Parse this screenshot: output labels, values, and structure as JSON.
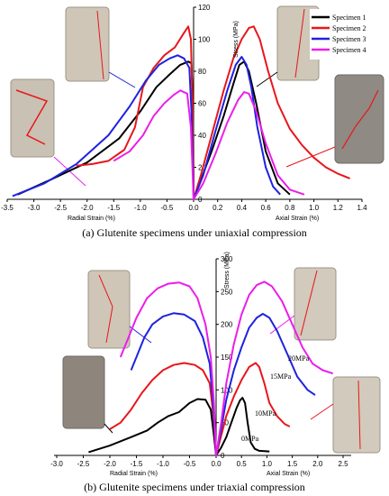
{
  "chart_data": [
    {
      "type": "line",
      "caption": "(a) Glutenite specimens under uniaxial compression",
      "xlabel_left": "Radial  Strain (%)",
      "xlabel_right": "Axial Strain (%)",
      "ylabel": "Stress (MPa)",
      "xlim": [
        -3.5,
        1.4
      ],
      "ylim": [
        0,
        120
      ],
      "x_ticks": [
        -3.5,
        -3.0,
        -2.5,
        -2.0,
        -1.5,
        -1.0,
        -0.5,
        0.0,
        0.2,
        0.4,
        0.6,
        0.8,
        1.0,
        1.2,
        1.4
      ],
      "x_tick_labels": [
        "-3.5",
        "-3.0",
        "-2.5",
        "-2.0",
        "-1.5",
        "-1.0",
        "-0.5",
        "0.0",
        "0.2",
        "0.4",
        "0.6",
        "0.8",
        "1.0",
        "1.2",
        "1.4"
      ],
      "y_ticks": [
        0,
        20,
        40,
        60,
        80,
        100,
        120
      ],
      "legend": [
        "Specimen 1",
        "Specimen 2",
        "Specimen 3",
        "Specimen 4"
      ],
      "legend_position": "top-right",
      "series": [
        {
          "name": "Specimen 1",
          "color": "#000000",
          "points": [
            [
              -3.3,
              3
            ],
            [
              -2.7,
              12
            ],
            [
              -2.0,
              23
            ],
            [
              -1.4,
              38
            ],
            [
              -1.0,
              55
            ],
            [
              -0.7,
              70
            ],
            [
              -0.45,
              78
            ],
            [
              -0.25,
              84
            ],
            [
              -0.1,
              86
            ],
            [
              -0.04,
              85
            ],
            [
              -0.01,
              55
            ],
            [
              0.0,
              0
            ],
            [
              0.05,
              10
            ],
            [
              0.15,
              30
            ],
            [
              0.25,
              52
            ],
            [
              0.33,
              72
            ],
            [
              0.38,
              84
            ],
            [
              0.42,
              86
            ],
            [
              0.46,
              80
            ],
            [
              0.52,
              60
            ],
            [
              0.6,
              30
            ],
            [
              0.7,
              10
            ],
            [
              0.8,
              3
            ]
          ]
        },
        {
          "name": "Specimen 2",
          "color": "#e8161b",
          "points": [
            [
              -2.2,
              21
            ],
            [
              -1.9,
              22
            ],
            [
              -1.6,
              24
            ],
            [
              -1.3,
              31
            ],
            [
              -1.1,
              45
            ],
            [
              -0.95,
              70
            ],
            [
              -0.75,
              82
            ],
            [
              -0.55,
              90
            ],
            [
              -0.35,
              95
            ],
            [
              -0.2,
              103
            ],
            [
              -0.1,
              108
            ],
            [
              -0.05,
              100
            ],
            [
              -0.02,
              60
            ],
            [
              0.0,
              0
            ],
            [
              0.06,
              15
            ],
            [
              0.15,
              40
            ],
            [
              0.25,
              68
            ],
            [
              0.33,
              88
            ],
            [
              0.4,
              100
            ],
            [
              0.46,
              107
            ],
            [
              0.5,
              108
            ],
            [
              0.55,
              100
            ],
            [
              0.62,
              80
            ],
            [
              0.7,
              60
            ],
            [
              0.8,
              44
            ],
            [
              0.9,
              34
            ],
            [
              1.0,
              26
            ],
            [
              1.1,
              20
            ],
            [
              1.2,
              16
            ],
            [
              1.3,
              13
            ]
          ]
        },
        {
          "name": "Specimen 3",
          "color": "#1e22e0",
          "points": [
            [
              -3.4,
              2
            ],
            [
              -2.8,
              10
            ],
            [
              -2.2,
              22
            ],
            [
              -1.6,
              40
            ],
            [
              -1.2,
              58
            ],
            [
              -0.9,
              74
            ],
            [
              -0.65,
              84
            ],
            [
              -0.45,
              88
            ],
            [
              -0.3,
              90
            ],
            [
              -0.18,
              88
            ],
            [
              -0.08,
              82
            ],
            [
              -0.04,
              55
            ],
            [
              0.0,
              0
            ],
            [
              0.08,
              15
            ],
            [
              0.18,
              42
            ],
            [
              0.28,
              68
            ],
            [
              0.35,
              84
            ],
            [
              0.4,
              89
            ],
            [
              0.44,
              84
            ],
            [
              0.48,
              70
            ],
            [
              0.53,
              45
            ],
            [
              0.6,
              20
            ],
            [
              0.66,
              8
            ],
            [
              0.72,
              3
            ]
          ]
        },
        {
          "name": "Specimen 4",
          "color": "#ea1ee8",
          "points": [
            [
              -1.5,
              24
            ],
            [
              -1.2,
              30
            ],
            [
              -0.95,
              40
            ],
            [
              -0.75,
              52
            ],
            [
              -0.55,
              60
            ],
            [
              -0.38,
              65
            ],
            [
              -0.25,
              68
            ],
            [
              -0.12,
              66
            ],
            [
              -0.05,
              45
            ],
            [
              0.0,
              0
            ],
            [
              0.08,
              10
            ],
            [
              0.18,
              28
            ],
            [
              0.28,
              48
            ],
            [
              0.37,
              62
            ],
            [
              0.42,
              67
            ],
            [
              0.46,
              66
            ],
            [
              0.52,
              55
            ],
            [
              0.6,
              35
            ],
            [
              0.7,
              15
            ],
            [
              0.8,
              6
            ],
            [
              0.92,
              3
            ]
          ]
        }
      ]
    },
    {
      "type": "line",
      "caption": "(b) Glutenite specimens under triaxial compression",
      "xlabel_left": "Radial  Strain (%)",
      "xlabel_right": "Axial Strain (%)",
      "ylabel": "Stress (MPa)",
      "xlim": [
        -3.0,
        2.5
      ],
      "ylim": [
        0,
        300
      ],
      "x_ticks": [
        -3.0,
        -2.5,
        -2.0,
        -1.5,
        -1.0,
        -0.5,
        0.0,
        0.5,
        1.0,
        1.5,
        2.0,
        2.5
      ],
      "x_tick_labels": [
        "-3.0",
        "-2.5",
        "-2.0",
        "-1.5",
        "-1.0",
        "-0.5",
        "0.0",
        "0.5",
        "1.0",
        "1.5",
        "2.0",
        "2.5"
      ],
      "y_ticks": [
        0,
        50,
        100,
        150,
        200,
        250,
        300
      ],
      "series": [
        {
          "name": "0MPa",
          "color": "#000000",
          "points": [
            [
              -2.4,
              5
            ],
            [
              -2.0,
              15
            ],
            [
              -1.6,
              28
            ],
            [
              -1.3,
              38
            ],
            [
              -1.1,
              50
            ],
            [
              -0.9,
              60
            ],
            [
              -0.7,
              66
            ],
            [
              -0.5,
              80
            ],
            [
              -0.35,
              86
            ],
            [
              -0.2,
              85
            ],
            [
              -0.1,
              70
            ],
            [
              -0.04,
              30
            ],
            [
              0.0,
              0
            ],
            [
              0.1,
              12
            ],
            [
              0.2,
              28
            ],
            [
              0.3,
              50
            ],
            [
              0.4,
              72
            ],
            [
              0.47,
              84
            ],
            [
              0.52,
              88
            ],
            [
              0.57,
              80
            ],
            [
              0.62,
              50
            ],
            [
              0.68,
              20
            ],
            [
              0.76,
              10
            ],
            [
              0.85,
              7
            ],
            [
              1.05,
              6
            ]
          ]
        },
        {
          "name": "10MPa",
          "color": "#e8161b",
          "points": [
            [
              -2.0,
              40
            ],
            [
              -1.8,
              50
            ],
            [
              -1.6,
              70
            ],
            [
              -1.4,
              95
            ],
            [
              -1.2,
              115
            ],
            [
              -1.0,
              130
            ],
            [
              -0.8,
              138
            ],
            [
              -0.6,
              141
            ],
            [
              -0.4,
              138
            ],
            [
              -0.25,
              130
            ],
            [
              -0.12,
              110
            ],
            [
              -0.05,
              60
            ],
            [
              0.0,
              0
            ],
            [
              0.1,
              30
            ],
            [
              0.2,
              60
            ],
            [
              0.35,
              90
            ],
            [
              0.5,
              115
            ],
            [
              0.65,
              135
            ],
            [
              0.78,
              141
            ],
            [
              0.85,
              135
            ],
            [
              0.95,
              110
            ],
            [
              1.05,
              80
            ],
            [
              1.2,
              60
            ],
            [
              1.35,
              48
            ],
            [
              1.45,
              44
            ]
          ]
        },
        {
          "name": "15MPa",
          "color": "#1e22e0",
          "points": [
            [
              -1.6,
              130
            ],
            [
              -1.5,
              150
            ],
            [
              -1.35,
              180
            ],
            [
              -1.2,
              200
            ],
            [
              -1.0,
              212
            ],
            [
              -0.8,
              217
            ],
            [
              -0.6,
              215
            ],
            [
              -0.4,
              205
            ],
            [
              -0.25,
              180
            ],
            [
              -0.12,
              140
            ],
            [
              -0.05,
              70
            ],
            [
              0.0,
              0
            ],
            [
              0.1,
              40
            ],
            [
              0.2,
              85
            ],
            [
              0.35,
              130
            ],
            [
              0.5,
              165
            ],
            [
              0.65,
              195
            ],
            [
              0.8,
              210
            ],
            [
              0.92,
              216
            ],
            [
              1.05,
              210
            ],
            [
              1.2,
              190
            ],
            [
              1.4,
              155
            ],
            [
              1.6,
              120
            ],
            [
              1.8,
              100
            ],
            [
              1.95,
              92
            ]
          ]
        },
        {
          "name": "20MPa",
          "color": "#ea1ee8",
          "points": [
            [
              -1.8,
              150
            ],
            [
              -1.65,
              180
            ],
            [
              -1.5,
              210
            ],
            [
              -1.3,
              240
            ],
            [
              -1.1,
              255
            ],
            [
              -0.9,
              262
            ],
            [
              -0.7,
              264
            ],
            [
              -0.5,
              258
            ],
            [
              -0.35,
              240
            ],
            [
              -0.2,
              200
            ],
            [
              -0.1,
              150
            ],
            [
              -0.04,
              80
            ],
            [
              0.0,
              0
            ],
            [
              0.1,
              50
            ],
            [
              0.2,
              110
            ],
            [
              0.35,
              170
            ],
            [
              0.5,
              215
            ],
            [
              0.65,
              245
            ],
            [
              0.8,
              260
            ],
            [
              0.95,
              265
            ],
            [
              1.1,
              258
            ],
            [
              1.3,
              235
            ],
            [
              1.5,
              200
            ],
            [
              1.7,
              165
            ],
            [
              1.9,
              140
            ],
            [
              2.1,
              130
            ],
            [
              2.3,
              125
            ]
          ]
        }
      ],
      "curve_labels": [
        "20MPa",
        "15MPa",
        "10MPa",
        "0MPa"
      ]
    }
  ]
}
